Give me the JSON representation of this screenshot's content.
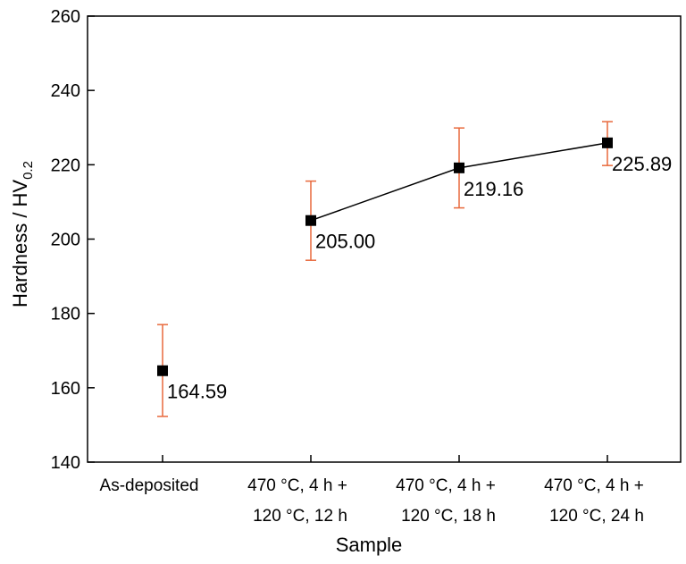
{
  "chart_data": {
    "type": "line",
    "xlabel": "Sample",
    "ylabel": {
      "main": "Hardness / HV",
      "sub": "0.2"
    },
    "ylim": [
      140,
      260
    ],
    "yticks": [
      140,
      160,
      180,
      200,
      220,
      240,
      260
    ],
    "categories": [
      {
        "line1": "As-deposited",
        "line2": ""
      },
      {
        "line1": "470 °C, 4 h +",
        "line2": "120 °C, 12 h"
      },
      {
        "line1": "470 °C, 4 h +",
        "line2": "120 °C, 18 h"
      },
      {
        "line1": "470 °C, 4 h +",
        "line2": "120 °C, 24 h"
      }
    ],
    "series": [
      {
        "values": [
          164.59,
          205.0,
          219.16,
          225.89
        ],
        "error_low": [
          152.3,
          194.3,
          208.4,
          219.8
        ],
        "error_high": [
          177.0,
          215.6,
          229.9,
          231.6
        ],
        "labels": [
          "164.59",
          "205.00",
          "219.16",
          "225.89"
        ],
        "connected": [
          false,
          true,
          true,
          true
        ]
      }
    ],
    "colors": {
      "marker": "#000000",
      "line": "#000000",
      "error_bar": "#e8693c"
    },
    "grid": false,
    "legend": "none"
  }
}
